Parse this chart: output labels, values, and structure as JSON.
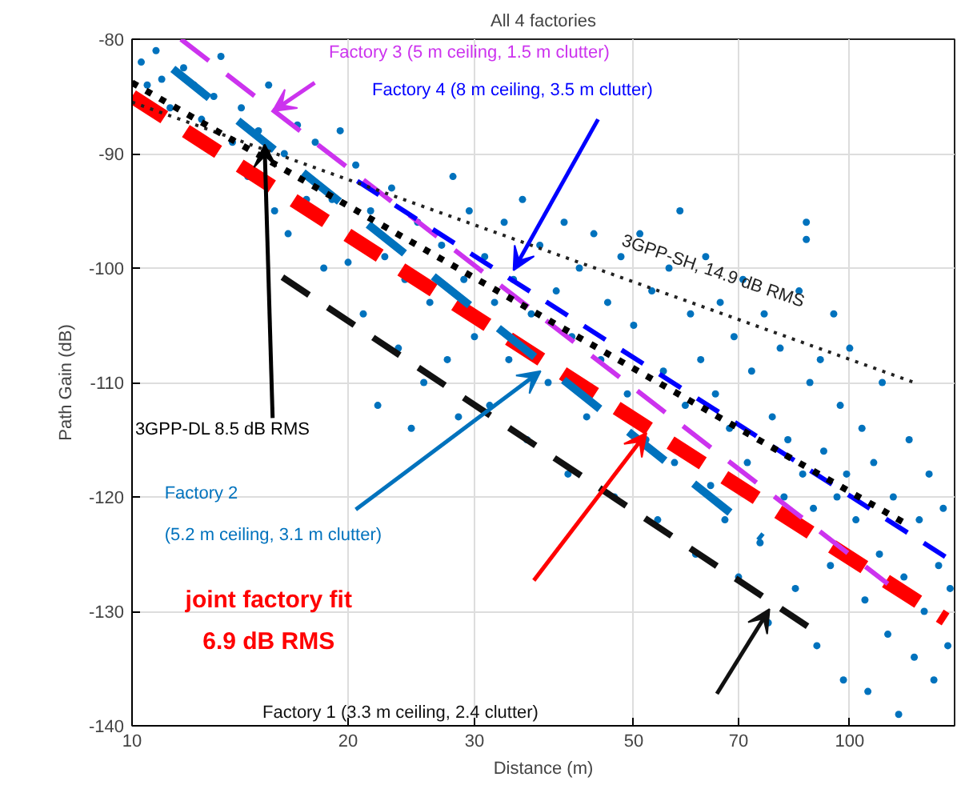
{
  "chart_data": {
    "type": "scatter",
    "title": "All 4 factories",
    "xlabel": "Distance (m)",
    "ylabel": "Path Gain (dB)",
    "log": "x",
    "grid": true,
    "xlim": [
      10,
      140
    ],
    "xticks": [
      10,
      20,
      30,
      50,
      70,
      100
    ],
    "ylim": [
      -140,
      -80
    ],
    "yticks": [
      -140,
      -130,
      -120,
      -110,
      -100,
      -90,
      -80
    ],
    "series": [
      {
        "marker": "circle",
        "color": "#0072bd",
        "x": [
          10.3,
          10.5,
          10.8,
          11,
          11.3,
          11.8,
          12.2,
          12.5,
          13,
          13.3,
          13.8,
          14.2,
          14.5,
          15,
          15.5,
          15.8,
          16.3,
          16.5,
          17,
          17.5,
          18,
          18.5,
          19,
          19.5,
          20,
          20.5,
          21,
          21.5,
          22,
          22.5,
          23,
          23.5,
          24,
          24.5,
          25,
          25.5,
          26,
          27,
          27.5,
          28,
          28.5,
          29,
          29.5,
          30,
          31,
          31.5,
          32,
          33,
          33.5,
          34,
          35,
          35.5,
          36,
          37,
          38,
          39,
          40,
          40.5,
          41,
          42,
          43,
          44,
          45,
          46,
          47,
          48,
          49,
          50,
          51,
          52,
          53,
          54,
          55,
          56,
          57,
          58,
          59,
          60,
          61,
          62,
          63,
          64,
          65,
          66,
          67,
          68,
          69,
          70,
          71,
          72,
          73,
          75,
          76,
          77,
          78,
          80,
          81,
          82,
          84,
          85,
          86,
          87,
          87,
          88,
          89,
          90,
          91,
          92,
          94,
          95,
          96,
          97,
          98,
          99,
          100,
          102,
          104,
          105,
          106,
          108,
          110,
          111,
          113,
          115,
          117,
          119,
          121,
          123,
          125,
          127,
          129,
          131,
          133,
          135,
          137,
          138
        ],
        "values": [
          -82,
          -84,
          -81,
          -83.5,
          -86,
          -82.5,
          -84,
          -87,
          -85,
          -81.5,
          -89,
          -86,
          -92,
          -88,
          -84,
          -95,
          -90,
          -97,
          -87.5,
          -94,
          -89,
          -100,
          -94,
          -88,
          -99.5,
          -91,
          -104,
          -95,
          -112,
          -99,
          -93,
          -107,
          -101,
          -114,
          -96,
          -110,
          -103,
          -98,
          -108,
          -92,
          -113,
          -101,
          -95,
          -106,
          -99,
          -112,
          -103,
          -96,
          -108,
          -101,
          -94,
          -115,
          -104,
          -98,
          -110,
          -102,
          -96,
          -118,
          -106,
          -100,
          -113,
          -97,
          -108,
          -103,
          -120,
          -99,
          -111,
          -105,
          -97,
          -115,
          -102,
          -122,
          -109,
          -100,
          -117,
          -95,
          -112,
          -104,
          -125,
          -108,
          -99,
          -119,
          -111,
          -103,
          -122,
          -114,
          -106,
          -127,
          -101,
          -117,
          -109,
          -124,
          -104,
          -131,
          -113,
          -107,
          -120,
          -115,
          -128,
          -102,
          -118,
          -97.5,
          -96,
          -110,
          -121,
          -133,
          -108,
          -116,
          -126,
          -104,
          -120,
          -112,
          -136,
          -118,
          -107,
          -122,
          -114,
          -129,
          -137,
          -117,
          -125,
          -110,
          -132,
          -120,
          -139,
          -127,
          -115,
          -134,
          -122,
          -130,
          -118,
          -136,
          -126,
          -121,
          -133,
          -128
        ]
      },
      {
        "type": "line",
        "name": "joint factory fit\n6.9 dB RMS",
        "color": "#ff0000",
        "line_style": "dashed",
        "x": [
          10,
          136
        ],
        "values": [
          -85,
          -130.7
        ]
      },
      {
        "type": "line",
        "name": "Factory 1 (3.3 m ceiling, 2.4 clutter)",
        "color": "#111111",
        "line_style": "dashed",
        "x": [
          16.2,
          87.8
        ],
        "values": [
          -100.8,
          -131.4
        ]
      },
      {
        "type": "line",
        "name": "Factory 2\n(5.2 m ceiling, 3.1 m clutter)",
        "color": "#0072bd",
        "line_style": "dashed",
        "x": [
          11.4,
          75.5
        ],
        "values": [
          -82.6,
          -123.6
        ]
      },
      {
        "type": "line",
        "name": "Factory 3 (5 m ceiling, 1.5 m clutter)",
        "color": "#cc33ee",
        "line_style": "dashed",
        "x": [
          11.7,
          113
        ],
        "values": [
          -80,
          -127.6
        ]
      },
      {
        "type": "line",
        "name": "Factory 4 (8 m ceiling, 3.5 m clutter)",
        "color": "#0000ff",
        "line_style": "dashed",
        "x": [
          20.6,
          138
        ],
        "values": [
          -92.4,
          -125.5
        ]
      },
      {
        "type": "line",
        "name": "3GPP-SH, 14.9 dB RMS",
        "color": "#222222",
        "line_style": "dotted",
        "x": [
          10,
          123
        ],
        "values": [
          -85.5,
          -110
        ]
      },
      {
        "type": "line",
        "name": "3GPP-DL 8.5 dB RMS",
        "color": "#000000",
        "line_style": "dotted",
        "x": [
          10,
          121
        ],
        "values": [
          -83.8,
          -122.5
        ]
      }
    ]
  }
}
